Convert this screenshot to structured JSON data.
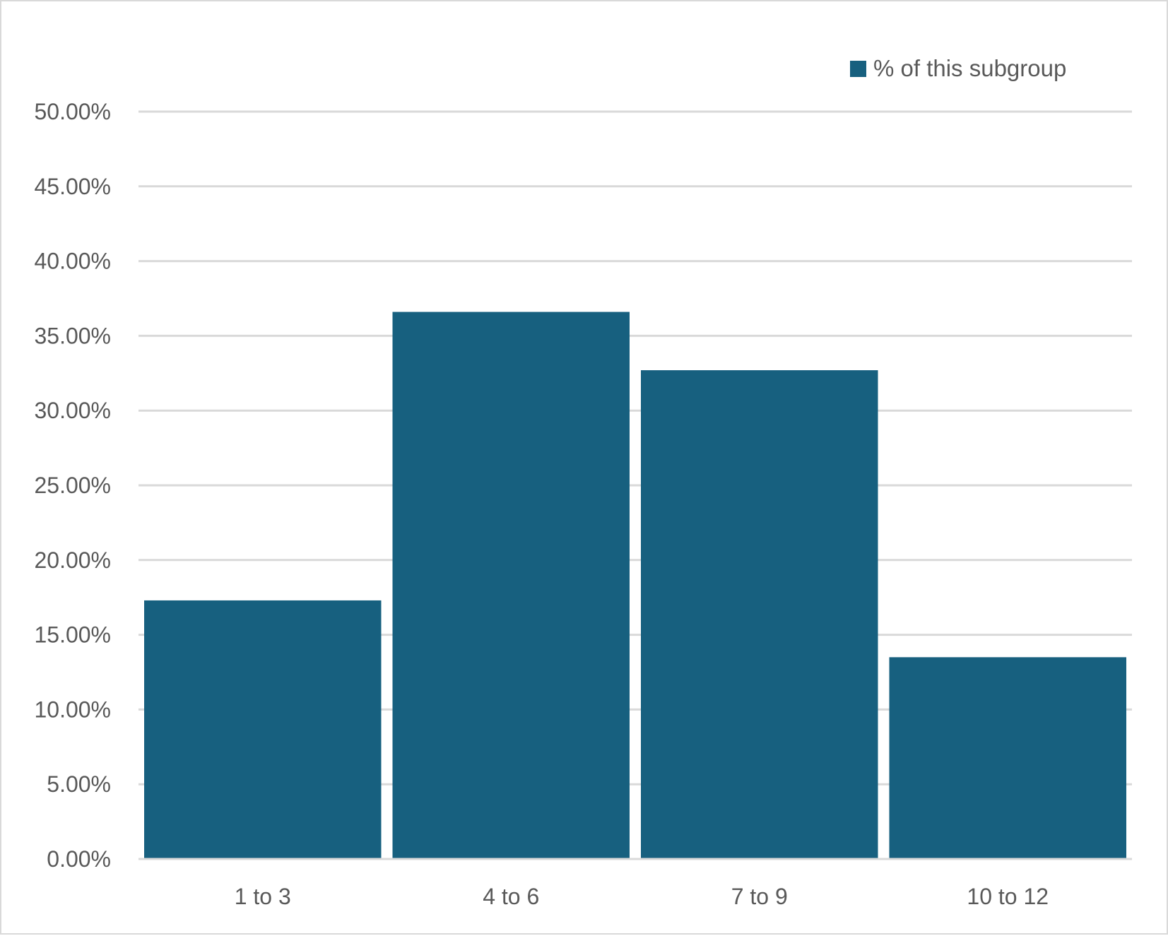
{
  "chart_data": {
    "type": "bar",
    "categories": [
      "1 to 3",
      "4 to 6",
      "7 to 9",
      "10 to 12"
    ],
    "series": [
      {
        "name": "% of this subgroup",
        "values": [
          17.3,
          36.6,
          32.7,
          13.5
        ]
      }
    ],
    "title": "",
    "xlabel": "",
    "ylabel": "",
    "ylim": [
      0,
      50
    ],
    "y_ticks": [
      "0.00%",
      "5.00%",
      "10.00%",
      "15.00%",
      "20.00%",
      "25.00%",
      "30.00%",
      "35.00%",
      "40.00%",
      "45.00%",
      "50.00%"
    ],
    "grid": true,
    "legend_position": "top-right",
    "bar_color": "#17607f",
    "grid_color": "#d9d9d9",
    "text_color": "#595959"
  }
}
